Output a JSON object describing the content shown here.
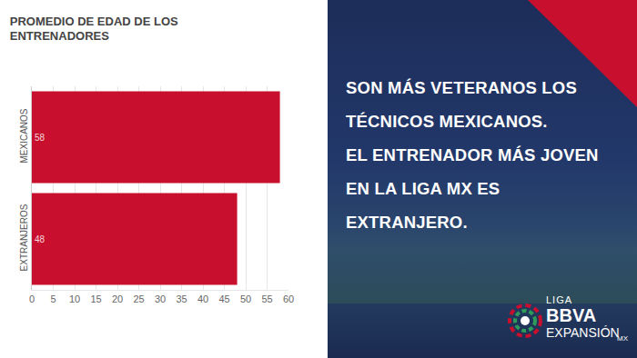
{
  "chart_data": {
    "type": "bar",
    "title": "PROMEDIO DE EDAD DE LOS ENTRENADORES",
    "orientation": "horizontal",
    "categories": [
      "MEXICANOS",
      "EXTRANJEROS"
    ],
    "values": [
      58,
      48
    ],
    "color": "#c8102e",
    "xlim": [
      0,
      60
    ],
    "xticks": [
      0,
      5,
      10,
      15,
      20,
      25,
      30,
      35,
      40,
      45,
      50,
      55,
      60
    ],
    "grid": true,
    "data_labels": true
  },
  "panel": {
    "headline": [
      "SON MÁS VETERANOS LOS",
      "TÉCNICOS MEXICANOS.",
      "EL ENTRENADOR MÁS JOVEN",
      "EN LA LIGA MX ES",
      "EXTRANJERO."
    ],
    "logo": [
      "LIGA",
      "BBVA",
      "EXPANSIÓN",
      "MX"
    ]
  }
}
